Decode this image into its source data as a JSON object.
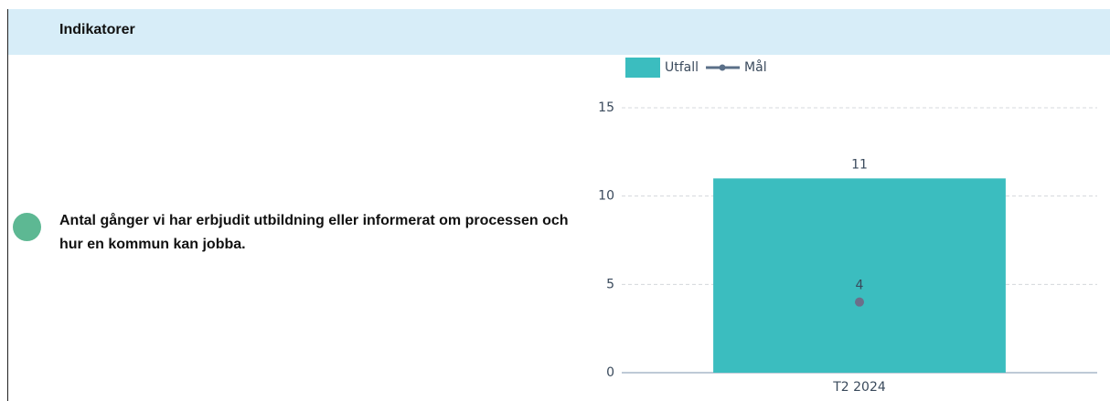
{
  "header": {
    "title": "Indikatorer"
  },
  "indicator": {
    "text": "Antal gånger vi har erbjudit utbildning eller informerat om processen och hur en kommun kan jobba."
  },
  "chart_data": {
    "type": "bar",
    "categories": [
      "T2 2024"
    ],
    "series": [
      {
        "name": "Utfall",
        "type": "bar",
        "color": "#3bbdbf",
        "values": [
          11
        ]
      },
      {
        "name": "Mål",
        "type": "line",
        "color": "#6b6f8a",
        "values": [
          4
        ]
      }
    ],
    "ylim": [
      0,
      15
    ],
    "yticks": [
      0,
      5,
      10,
      15
    ],
    "grid": true,
    "legend": "top"
  }
}
